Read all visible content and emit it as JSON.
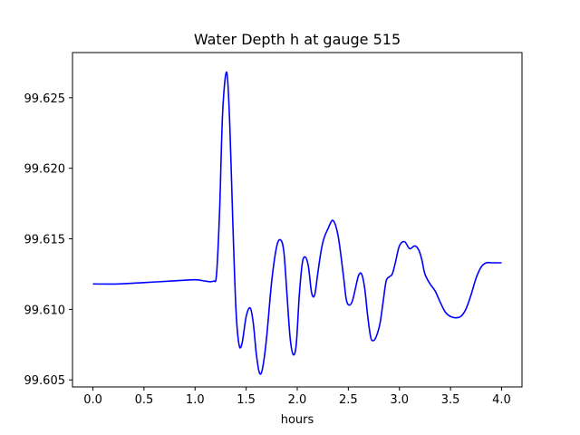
{
  "chart_data": {
    "type": "line",
    "title": "Water Depth h at gauge 515",
    "xlabel": "hours",
    "ylabel": "",
    "xlim": [
      -0.2,
      4.2
    ],
    "ylim": [
      99.6045,
      99.6282
    ],
    "xticks": [
      "0.0",
      "0.5",
      "1.0",
      "1.5",
      "2.0",
      "2.5",
      "3.0",
      "3.5",
      "4.0"
    ],
    "xtick_values": [
      0,
      0.5,
      1.0,
      1.5,
      2.0,
      2.5,
      3.0,
      3.5,
      4.0
    ],
    "yticks": [
      "99.605",
      "99.610",
      "99.615",
      "99.620",
      "99.625"
    ],
    "ytick_values": [
      99.605,
      99.61,
      99.615,
      99.62,
      99.625
    ],
    "grid": false,
    "series": [
      {
        "color": "#0000ff",
        "x": [
          0.0,
          0.25,
          0.5,
          0.75,
          1.0,
          1.1,
          1.18,
          1.21,
          1.24,
          1.27,
          1.31,
          1.34,
          1.37,
          1.4,
          1.43,
          1.46,
          1.5,
          1.54,
          1.57,
          1.6,
          1.63,
          1.66,
          1.7,
          1.75,
          1.8,
          1.84,
          1.87,
          1.9,
          1.93,
          1.96,
          1.99,
          2.02,
          2.05,
          2.08,
          2.11,
          2.14,
          2.17,
          2.2,
          2.23,
          2.26,
          2.3,
          2.35,
          2.4,
          2.45,
          2.48,
          2.51,
          2.54,
          2.57,
          2.6,
          2.63,
          2.66,
          2.69,
          2.72,
          2.75,
          2.78,
          2.81,
          2.84,
          2.87,
          2.9,
          2.93,
          2.96,
          3.0,
          3.05,
          3.1,
          3.15,
          3.19,
          3.22,
          3.25,
          3.3,
          3.35,
          3.4,
          3.45,
          3.5,
          3.55,
          3.6,
          3.65,
          3.7,
          3.75,
          3.8,
          3.85,
          3.9,
          3.95,
          4.0
        ],
        "y": [
          99.6118,
          99.6118,
          99.6119,
          99.612,
          99.6121,
          99.612,
          99.612,
          99.6125,
          99.617,
          99.624,
          99.6268,
          99.623,
          99.616,
          99.61,
          99.6075,
          99.6076,
          99.6095,
          99.6101,
          99.609,
          99.6068,
          99.6055,
          99.6058,
          99.608,
          99.612,
          99.6145,
          99.6149,
          99.614,
          99.611,
          99.608,
          99.6068,
          99.6075,
          99.611,
          99.6133,
          99.6137,
          99.613,
          99.6112,
          99.611,
          99.6125,
          99.614,
          99.615,
          99.6157,
          99.6163,
          99.6152,
          99.6125,
          99.6107,
          99.6103,
          99.6106,
          99.6115,
          99.6124,
          99.6125,
          99.6115,
          99.6095,
          99.608,
          99.6078,
          99.6082,
          99.609,
          99.6105,
          99.612,
          99.6123,
          99.6125,
          99.6133,
          99.6145,
          99.6148,
          99.6143,
          99.6145,
          99.6142,
          99.6135,
          99.6125,
          99.6118,
          99.6113,
          99.6105,
          99.6098,
          99.6095,
          99.6094,
          99.6095,
          99.61,
          99.611,
          99.6122,
          99.613,
          99.6133,
          99.6133,
          99.6133,
          99.6133
        ]
      }
    ]
  }
}
